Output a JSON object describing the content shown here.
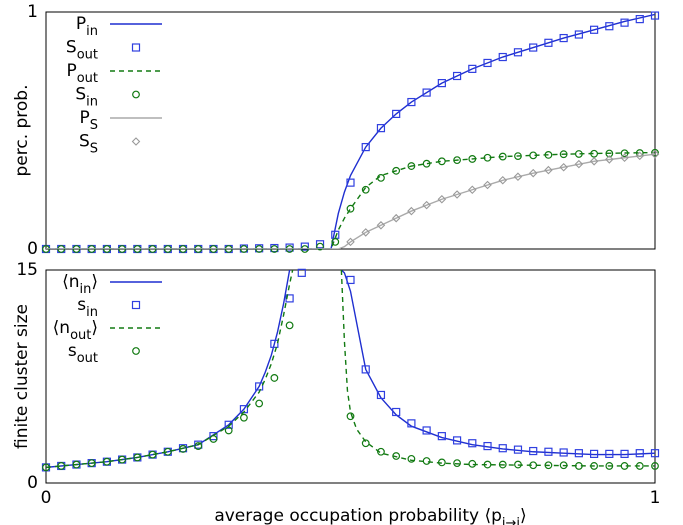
{
  "chart_data": [
    {
      "type": "line",
      "ylabel": "perc. prob.",
      "xlim": [
        0,
        1
      ],
      "ylim": [
        0,
        1
      ],
      "yticks": [
        0,
        1
      ],
      "legend": "top-left",
      "series": [
        {
          "name": "P",
          "sub": "in",
          "color": "#1f2fd0",
          "style": "line",
          "x": [
            0,
            0.1,
            0.2,
            0.3,
            0.4,
            0.45,
            0.468,
            0.48,
            0.49,
            0.5,
            0.525,
            0.55,
            0.575,
            0.6,
            0.65,
            0.7,
            0.75,
            0.8,
            0.85,
            0.9,
            0.95,
            1
          ],
          "values": [
            0,
            0,
            0,
            0,
            0,
            0,
            0,
            0.15,
            0.24,
            0.31,
            0.43,
            0.51,
            0.57,
            0.62,
            0.7,
            0.76,
            0.81,
            0.85,
            0.89,
            0.925,
            0.96,
            0.99
          ]
        },
        {
          "name": "S",
          "sub": "out",
          "color": "#2f3fe0",
          "style": "square",
          "x": [
            0,
            0.025,
            0.05,
            0.075,
            0.1,
            0.125,
            0.15,
            0.175,
            0.2,
            0.225,
            0.25,
            0.275,
            0.3,
            0.325,
            0.35,
            0.375,
            0.4,
            0.425,
            0.45,
            0.475,
            0.5,
            0.525,
            0.55,
            0.575,
            0.6,
            0.625,
            0.65,
            0.675,
            0.7,
            0.725,
            0.75,
            0.775,
            0.8,
            0.825,
            0.85,
            0.875,
            0.9,
            0.925,
            0.95,
            0.975,
            1
          ],
          "values": [
            0,
            0,
            0,
            0,
            0,
            0,
            0,
            0,
            0,
            0,
            0,
            0,
            0,
            0.002,
            0.003,
            0.004,
            0.006,
            0.01,
            0.02,
            0.06,
            0.28,
            0.43,
            0.51,
            0.57,
            0.62,
            0.66,
            0.7,
            0.73,
            0.76,
            0.785,
            0.81,
            0.83,
            0.85,
            0.87,
            0.89,
            0.905,
            0.925,
            0.94,
            0.955,
            0.97,
            0.985
          ]
        },
        {
          "name": "P",
          "sub": "out",
          "color": "#127a12",
          "style": "dashed",
          "x": [
            0,
            0.1,
            0.2,
            0.3,
            0.4,
            0.45,
            0.468,
            0.48,
            0.49,
            0.5,
            0.525,
            0.55,
            0.575,
            0.6,
            0.65,
            0.7,
            0.75,
            0.8,
            0.85,
            0.9,
            0.95,
            1
          ],
          "values": [
            0,
            0,
            0,
            0,
            0,
            0,
            0,
            0.08,
            0.13,
            0.17,
            0.26,
            0.31,
            0.33,
            0.35,
            0.37,
            0.38,
            0.39,
            0.395,
            0.4,
            0.403,
            0.405,
            0.407
          ]
        },
        {
          "name": "S",
          "sub": "in",
          "color": "#127a12",
          "style": "circle",
          "x": [
            0,
            0.025,
            0.05,
            0.075,
            0.1,
            0.125,
            0.15,
            0.175,
            0.2,
            0.225,
            0.25,
            0.275,
            0.3,
            0.325,
            0.35,
            0.375,
            0.4,
            0.425,
            0.45,
            0.475,
            0.5,
            0.525,
            0.55,
            0.575,
            0.6,
            0.625,
            0.65,
            0.675,
            0.7,
            0.725,
            0.75,
            0.775,
            0.8,
            0.825,
            0.85,
            0.875,
            0.9,
            0.925,
            0.95,
            0.975,
            1
          ],
          "values": [
            0,
            0,
            0,
            0,
            0,
            0,
            0,
            0,
            0,
            0,
            0,
            0,
            0,
            0,
            0,
            0,
            0,
            0,
            0.01,
            0.03,
            0.17,
            0.25,
            0.3,
            0.33,
            0.35,
            0.36,
            0.37,
            0.375,
            0.38,
            0.385,
            0.39,
            0.392,
            0.395,
            0.397,
            0.4,
            0.401,
            0.402,
            0.403,
            0.404,
            0.405,
            0.406
          ]
        },
        {
          "name": "P",
          "sub": "S",
          "color": "#aaaaaa",
          "style": "line",
          "x": [
            0,
            0.2,
            0.4,
            0.48,
            0.49,
            0.5,
            0.525,
            0.55,
            0.6,
            0.65,
            0.7,
            0.75,
            0.8,
            0.85,
            0.9,
            0.95,
            1
          ],
          "values": [
            0,
            0,
            0,
            0,
            0.01,
            0.03,
            0.07,
            0.1,
            0.16,
            0.21,
            0.25,
            0.29,
            0.32,
            0.345,
            0.37,
            0.385,
            0.4
          ]
        },
        {
          "name": "S",
          "sub": "S",
          "color": "#999999",
          "style": "diamond",
          "x": [
            0.5,
            0.525,
            0.55,
            0.575,
            0.6,
            0.625,
            0.65,
            0.675,
            0.7,
            0.725,
            0.75,
            0.775,
            0.8,
            0.825,
            0.85,
            0.875,
            0.9,
            0.925,
            0.95,
            0.975,
            1
          ],
          "values": [
            0.03,
            0.07,
            0.1,
            0.13,
            0.16,
            0.185,
            0.21,
            0.23,
            0.25,
            0.27,
            0.29,
            0.305,
            0.32,
            0.333,
            0.345,
            0.358,
            0.37,
            0.378,
            0.385,
            0.393,
            0.4
          ]
        }
      ]
    },
    {
      "type": "line",
      "ylabel": "finite cluster size",
      "xlabel": {
        "text": "average occupation probability ⟨p",
        "sub": "i→j",
        "tail": "⟩"
      },
      "xlim": [
        0,
        1
      ],
      "xticks": [
        0,
        1
      ],
      "ylim": [
        0,
        15
      ],
      "yticks": [
        0,
        15
      ],
      "legend": "top-left",
      "series": [
        {
          "name": "⟨n",
          "sub": "in",
          "tail": "⟩",
          "color": "#1f2fd0",
          "style": "line",
          "x": [
            0,
            0.05,
            0.1,
            0.15,
            0.2,
            0.25,
            0.3,
            0.325,
            0.35,
            0.36,
            0.37,
            0.38,
            0.39,
            0.4,
            null,
            0.485,
            0.49,
            0.5,
            0.525,
            0.55,
            0.575,
            0.6,
            0.65,
            0.7,
            0.75,
            0.8,
            0.85,
            0.9,
            0.95,
            1
          ],
          "values": [
            1.1,
            1.3,
            1.5,
            1.8,
            2.2,
            2.7,
            4.1,
            5.2,
            6.8,
            7.8,
            9.0,
            10.6,
            12.6,
            15,
            null,
            15,
            14.8,
            13.5,
            8.0,
            6.0,
            4.8,
            4.0,
            3.2,
            2.7,
            2.4,
            2.2,
            2.1,
            2.0,
            2.0,
            2.1
          ]
        },
        {
          "name": "s",
          "sub": "in",
          "color": "#2f3fe0",
          "style": "square",
          "x": [
            0,
            0.025,
            0.05,
            0.075,
            0.1,
            0.125,
            0.15,
            0.175,
            0.2,
            0.225,
            0.25,
            0.275,
            0.3,
            0.325,
            0.35,
            0.375,
            0.4,
            0.42,
            0.5,
            0.525,
            0.55,
            0.575,
            0.6,
            0.625,
            0.65,
            0.675,
            0.7,
            0.725,
            0.75,
            0.775,
            0.8,
            0.825,
            0.85,
            0.875,
            0.9,
            0.925,
            0.95,
            0.975,
            1
          ],
          "values": [
            1.1,
            1.2,
            1.3,
            1.4,
            1.5,
            1.65,
            1.8,
            2.0,
            2.2,
            2.45,
            2.7,
            3.3,
            4.1,
            5.2,
            6.8,
            9.8,
            13.0,
            14.8,
            14.3,
            8.0,
            6.2,
            5.0,
            4.2,
            3.7,
            3.3,
            3.0,
            2.8,
            2.6,
            2.45,
            2.35,
            2.25,
            2.2,
            2.15,
            2.1,
            2.05,
            2.05,
            2.05,
            2.1,
            2.1
          ]
        },
        {
          "name": "⟨n",
          "sub": "out",
          "tail": "⟩",
          "color": "#127a12",
          "style": "dashed",
          "x": [
            0,
            0.05,
            0.1,
            0.15,
            0.2,
            0.25,
            0.3,
            0.325,
            0.35,
            0.36,
            0.37,
            0.38,
            0.39,
            0.4,
            0.405,
            null,
            0.485,
            0.49,
            0.495,
            0.5,
            0.51,
            0.525,
            0.55,
            0.6,
            0.65,
            0.7,
            0.8,
            0.9,
            1
          ],
          "values": [
            1.1,
            1.3,
            1.5,
            1.8,
            2.2,
            2.7,
            4.0,
            5.0,
            6.4,
            7.3,
            8.4,
            9.8,
            11.8,
            14.0,
            15,
            null,
            15,
            10,
            6.5,
            5.0,
            3.8,
            2.9,
            2.1,
            1.6,
            1.4,
            1.3,
            1.25,
            1.2,
            1.2
          ]
        },
        {
          "name": "s",
          "sub": "out",
          "color": "#127a12",
          "style": "circle",
          "x": [
            0,
            0.025,
            0.05,
            0.075,
            0.1,
            0.125,
            0.15,
            0.175,
            0.2,
            0.225,
            0.25,
            0.275,
            0.3,
            0.325,
            0.35,
            0.375,
            0.4,
            0.5,
            0.525,
            0.55,
            0.575,
            0.6,
            0.625,
            0.65,
            0.675,
            0.7,
            0.725,
            0.75,
            0.775,
            0.8,
            0.825,
            0.85,
            0.875,
            0.9,
            0.925,
            0.95,
            0.975,
            1
          ],
          "values": [
            1.1,
            1.2,
            1.3,
            1.4,
            1.5,
            1.65,
            1.8,
            2.0,
            2.2,
            2.4,
            2.6,
            3.1,
            3.7,
            4.6,
            5.6,
            7.4,
            11.1,
            4.7,
            2.8,
            2.2,
            1.9,
            1.7,
            1.55,
            1.45,
            1.4,
            1.35,
            1.3,
            1.3,
            1.3,
            1.25,
            1.25,
            1.25,
            1.2,
            1.2,
            1.2,
            1.2,
            1.2,
            1.2
          ]
        }
      ]
    }
  ]
}
